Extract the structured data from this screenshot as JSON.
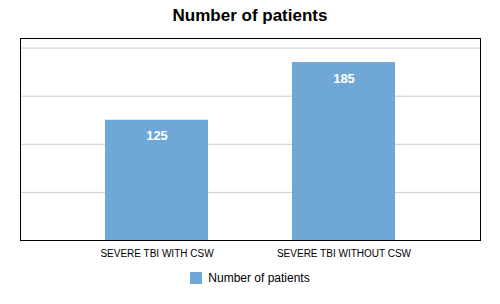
{
  "chart_data": {
    "type": "bar",
    "title": "Number of patients",
    "categories": [
      "SEVERE TBI WITH CSW",
      "SEVERE TBI WITHOUT CSW"
    ],
    "series": [
      {
        "name": "Number of patients",
        "color": "#6fa8d6",
        "values": [
          125,
          185
        ]
      }
    ],
    "ylim": [
      0,
      210
    ],
    "yticks": [
      50,
      100,
      150,
      200
    ],
    "grid": true,
    "tick_labels": "x",
    "data_labels": true,
    "legend": "bottom"
  }
}
